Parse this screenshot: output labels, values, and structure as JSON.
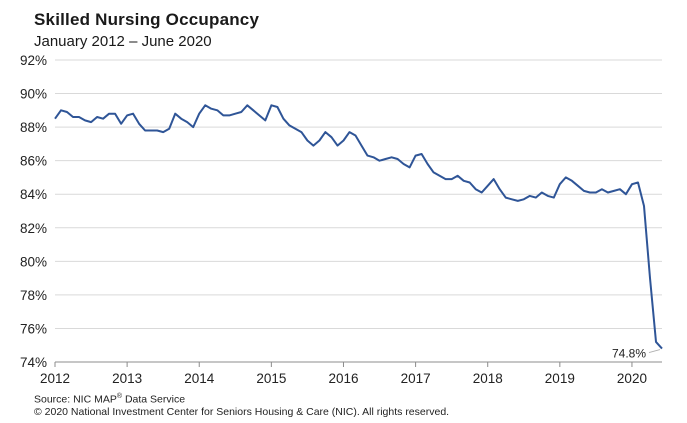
{
  "chart_data": {
    "type": "line",
    "title": "Skilled Nursing Occupancy",
    "subtitle": "January 2012 – June 2020",
    "xlabel": "",
    "ylabel": "",
    "ylim": [
      74,
      92
    ],
    "y_ticks": [
      "74%",
      "76%",
      "78%",
      "80%",
      "82%",
      "84%",
      "86%",
      "88%",
      "90%",
      "92%"
    ],
    "x_ticks": [
      "2012",
      "2013",
      "2014",
      "2015",
      "2016",
      "2017",
      "2018",
      "2019",
      "2020"
    ],
    "grid": true,
    "line_color": "#2f5597",
    "end_label": "74.8%",
    "series": [
      {
        "x_start": "2012-01",
        "frequency": "monthly",
        "values": [
          88.5,
          89.0,
          88.9,
          88.6,
          88.6,
          88.4,
          88.3,
          88.6,
          88.5,
          88.8,
          88.8,
          88.2,
          88.7,
          88.8,
          88.2,
          87.8,
          87.8,
          87.8,
          87.7,
          87.9,
          88.8,
          88.5,
          88.3,
          88.0,
          88.8,
          89.3,
          89.1,
          89.0,
          88.7,
          88.7,
          88.8,
          88.9,
          89.3,
          89.0,
          88.7,
          88.4,
          89.3,
          89.2,
          88.5,
          88.1,
          87.9,
          87.7,
          87.2,
          86.9,
          87.2,
          87.7,
          87.4,
          86.9,
          87.2,
          87.7,
          87.5,
          86.9,
          86.3,
          86.2,
          86.0,
          86.1,
          86.2,
          86.1,
          85.8,
          85.6,
          86.3,
          86.4,
          85.8,
          85.3,
          85.1,
          84.9,
          84.9,
          85.1,
          84.8,
          84.7,
          84.3,
          84.1,
          84.5,
          84.9,
          84.3,
          83.8,
          83.7,
          83.6,
          83.7,
          83.9,
          83.8,
          84.1,
          83.9,
          83.8,
          84.6,
          85.0,
          84.8,
          84.5,
          84.2,
          84.1,
          84.1,
          84.3,
          84.1,
          84.2,
          84.3,
          84.0,
          84.6,
          84.7,
          83.3,
          79.0,
          75.2,
          74.8
        ]
      }
    ]
  },
  "footer": {
    "source_prefix": "Source: NIC MAP",
    "source_mark": "®",
    "source_suffix": " Data Service",
    "copyright": "© 2020 National Investment Center for Seniors Housing & Care (NIC).  All rights reserved."
  }
}
